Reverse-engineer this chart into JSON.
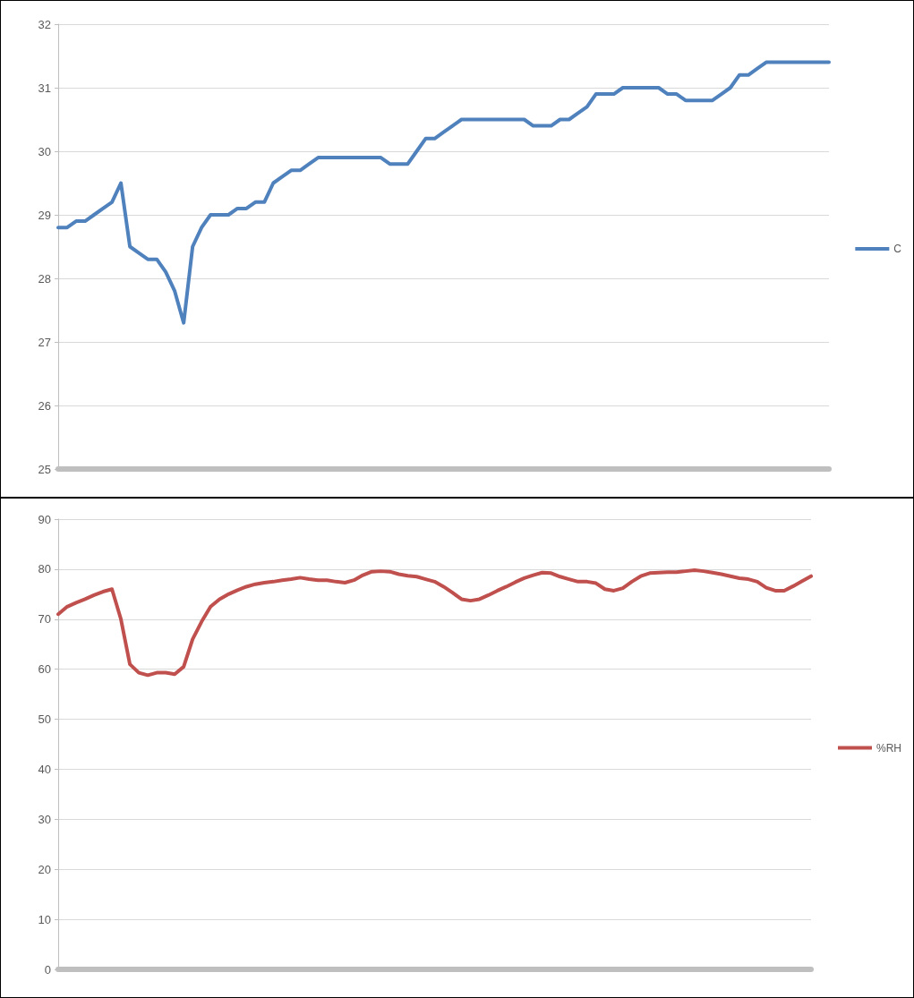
{
  "chart_data": [
    {
      "type": "line",
      "categories": [
        null,
        null,
        null,
        null,
        null,
        null,
        null,
        null,
        null,
        null,
        null,
        null,
        null,
        null,
        null,
        null,
        null,
        null,
        null,
        null,
        null,
        null,
        null,
        null,
        null,
        null,
        null,
        null,
        null,
        null,
        null,
        null,
        null,
        null,
        null,
        null,
        null,
        null,
        null,
        null,
        null,
        null,
        null,
        null,
        null,
        null,
        null,
        null,
        null,
        null,
        null,
        null,
        null,
        null,
        null,
        null,
        null,
        null,
        null,
        null,
        null,
        null,
        null,
        null,
        null,
        null,
        null,
        null,
        null,
        null,
        null,
        null,
        null,
        null,
        null,
        null,
        null,
        null,
        null,
        null,
        null,
        null,
        null,
        null,
        null,
        null,
        null
      ],
      "series": [
        {
          "name": "C",
          "color": "#4f81bd",
          "values": [
            28.8,
            28.8,
            28.9,
            28.9,
            29.0,
            29.1,
            29.2,
            29.5,
            28.5,
            28.4,
            28.3,
            28.3,
            28.1,
            27.8,
            27.3,
            28.5,
            28.8,
            29.0,
            29.0,
            29.0,
            29.1,
            29.1,
            29.2,
            29.2,
            29.5,
            29.6,
            29.7,
            29.7,
            29.8,
            29.9,
            29.9,
            29.9,
            29.9,
            29.9,
            29.9,
            29.9,
            29.9,
            29.8,
            29.8,
            29.8,
            30.0,
            30.2,
            30.2,
            30.3,
            30.4,
            30.5,
            30.5,
            30.5,
            30.5,
            30.5,
            30.5,
            30.5,
            30.5,
            30.4,
            30.4,
            30.4,
            30.5,
            30.5,
            30.6,
            30.7,
            30.9,
            30.9,
            30.9,
            31.0,
            31.0,
            31.0,
            31.0,
            31.0,
            30.9,
            30.9,
            30.8,
            30.8,
            30.8,
            30.8,
            30.9,
            31.0,
            31.2,
            31.2,
            31.3,
            31.4,
            31.4,
            31.4,
            31.4,
            31.4,
            31.4,
            31.4,
            31.4
          ]
        }
      ],
      "ylim": [
        25,
        32
      ],
      "yticks": [
        25,
        26,
        27,
        28,
        29,
        30,
        31,
        32
      ],
      "grid": "y",
      "legend": "right",
      "tick_labels": "y",
      "marker": "none",
      "line_style": "solid"
    },
    {
      "type": "line",
      "categories": [
        null,
        null,
        null,
        null,
        null,
        null,
        null,
        null,
        null,
        null,
        null,
        null,
        null,
        null,
        null,
        null,
        null,
        null,
        null,
        null,
        null,
        null,
        null,
        null,
        null,
        null,
        null,
        null,
        null,
        null,
        null,
        null,
        null,
        null,
        null,
        null,
        null,
        null,
        null,
        null,
        null,
        null,
        null,
        null,
        null,
        null,
        null,
        null,
        null,
        null,
        null,
        null,
        null,
        null,
        null,
        null,
        null,
        null,
        null,
        null,
        null,
        null,
        null,
        null,
        null,
        null,
        null,
        null,
        null,
        null,
        null,
        null,
        null,
        null,
        null,
        null,
        null,
        null,
        null,
        null,
        null,
        null,
        null,
        null,
        null
      ],
      "series": [
        {
          "name": "%RH",
          "color": "#c0504d",
          "values": [
            71,
            72.5,
            73.3,
            74,
            74.8,
            75.5,
            76,
            70,
            61,
            59.3,
            58.8,
            59.3,
            59.3,
            59,
            60.5,
            66,
            69.5,
            72.5,
            74,
            75,
            75.8,
            76.5,
            77,
            77.3,
            77.5,
            77.8,
            78,
            78.3,
            78,
            77.8,
            77.8,
            77.5,
            77.3,
            77.8,
            78.8,
            79.5,
            79.6,
            79.5,
            79,
            78.7,
            78.5,
            78,
            77.5,
            76.5,
            75.3,
            74,
            73.7,
            74,
            74.8,
            75.7,
            76.5,
            77.4,
            78.2,
            78.8,
            79.3,
            79.2,
            78.5,
            78,
            77.5,
            77.5,
            77.2,
            76,
            75.7,
            76.2,
            77.5,
            78.6,
            79.2,
            79.3,
            79.4,
            79.4,
            79.6,
            79.8,
            79.6,
            79.3,
            79,
            78.6,
            78.2,
            78,
            77.5,
            76.3,
            75.7,
            75.7,
            76.6,
            77.6,
            78.6
          ]
        }
      ],
      "ylim": [
        0,
        90
      ],
      "yticks": [
        0,
        10,
        20,
        30,
        40,
        50,
        60,
        70,
        80,
        90
      ],
      "grid": "y",
      "legend": "right",
      "tick_labels": "y",
      "marker": "none",
      "line_style": "solid"
    }
  ]
}
